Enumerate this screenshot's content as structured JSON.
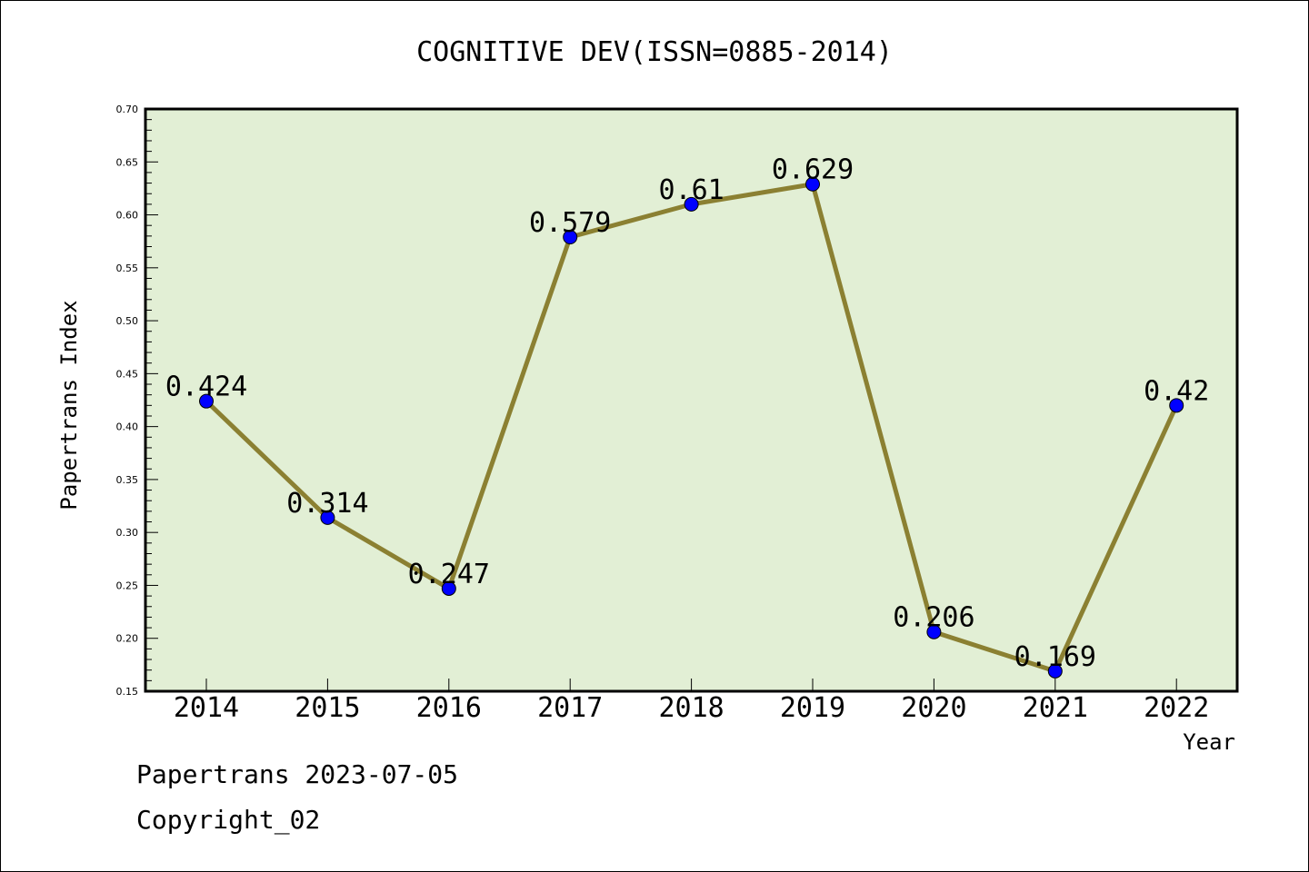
{
  "chart_data": {
    "type": "line",
    "title": "COGNITIVE DEV(ISSN=0885-2014)",
    "xlabel": "Year",
    "ylabel": "Papertrans Index",
    "categories": [
      "2014",
      "2015",
      "2016",
      "2017",
      "2018",
      "2019",
      "2020",
      "2021",
      "2022"
    ],
    "series": [
      {
        "values": [
          0.424,
          0.314,
          0.247,
          0.579,
          0.61,
          0.629,
          0.206,
          0.169,
          0.42
        ],
        "labels": [
          "0.424",
          "0.314",
          "0.247",
          "0.579",
          "0.61",
          "0.629",
          "0.206",
          "0.169",
          "0.42"
        ]
      }
    ],
    "ylim": [
      0.15,
      0.7
    ],
    "yticks": [
      "0.15",
      "0.20",
      "0.25",
      "0.30",
      "0.35",
      "0.40",
      "0.45",
      "0.50",
      "0.55",
      "0.60",
      "0.65",
      "0.70"
    ],
    "grid": false,
    "colors": {
      "plot_background": "#e2efd5",
      "line": "#8b8032",
      "marker": "#0000ff"
    }
  },
  "footer": {
    "line1": "Papertrans 2023-07-05",
    "line2": "Copyright_02"
  }
}
